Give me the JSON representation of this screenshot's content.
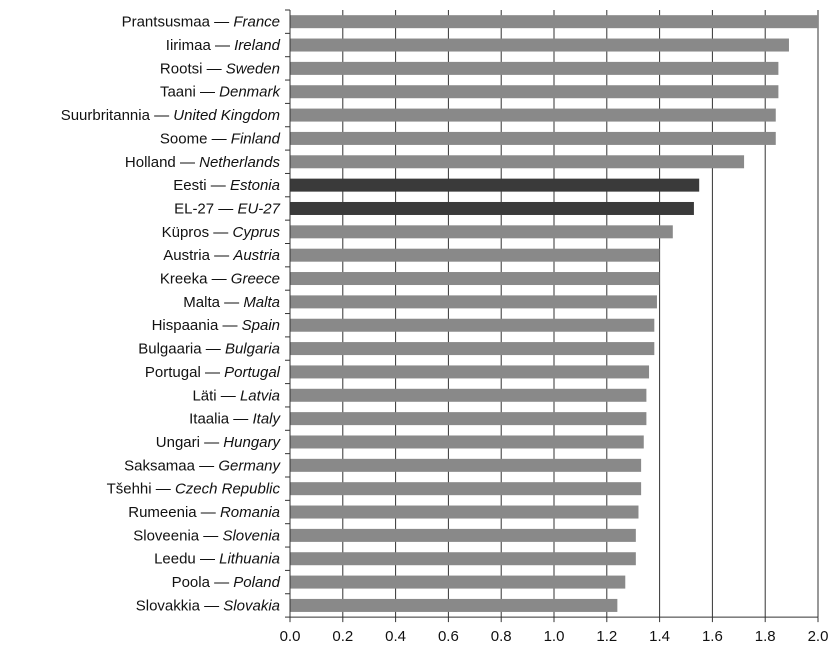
{
  "chart_data": {
    "type": "bar",
    "orientation": "horizontal",
    "title": "",
    "xlabel": "",
    "ylabel": "",
    "xlim": [
      0,
      2.0
    ],
    "xticks": [
      "0.0",
      "0.2",
      "0.4",
      "0.6",
      "0.8",
      "1.0",
      "1.2",
      "1.4",
      "1.6",
      "1.8",
      "2.0"
    ],
    "grid": "vertical",
    "legend": "none",
    "colors": {
      "bar": "#898989",
      "highlight": "#3a3a3a",
      "grid": "#333333",
      "axis": "#333333"
    },
    "categories": [
      {
        "et": "Prantsusmaa",
        "en": "France",
        "value": 2.0,
        "highlight": false
      },
      {
        "et": "Iirimaa",
        "en": "Ireland",
        "value": 1.89,
        "highlight": false
      },
      {
        "et": "Rootsi",
        "en": "Sweden",
        "value": 1.85,
        "highlight": false
      },
      {
        "et": "Taani",
        "en": "Denmark",
        "value": 1.85,
        "highlight": false
      },
      {
        "et": "Suurbritannia",
        "en": "United Kingdom",
        "value": 1.84,
        "highlight": false
      },
      {
        "et": "Soome",
        "en": "Finland",
        "value": 1.84,
        "highlight": false
      },
      {
        "et": "Holland",
        "en": "Netherlands",
        "value": 1.72,
        "highlight": false
      },
      {
        "et": "Eesti",
        "en": "Estonia",
        "value": 1.55,
        "highlight": true
      },
      {
        "et": "EL-27",
        "en": "EU-27",
        "value": 1.53,
        "highlight": true
      },
      {
        "et": "Küpros",
        "en": "Cyprus",
        "value": 1.45,
        "highlight": false
      },
      {
        "et": "Austria",
        "en": "Austria",
        "value": 1.4,
        "highlight": false
      },
      {
        "et": "Kreeka",
        "en": "Greece",
        "value": 1.4,
        "highlight": false
      },
      {
        "et": "Malta",
        "en": "Malta",
        "value": 1.39,
        "highlight": false
      },
      {
        "et": "Hispaania",
        "en": "Spain",
        "value": 1.38,
        "highlight": false
      },
      {
        "et": "Bulgaaria",
        "en": "Bulgaria",
        "value": 1.38,
        "highlight": false
      },
      {
        "et": "Portugal",
        "en": "Portugal",
        "value": 1.36,
        "highlight": false
      },
      {
        "et": "Läti",
        "en": "Latvia",
        "value": 1.35,
        "highlight": false
      },
      {
        "et": "Itaalia",
        "en": "Italy",
        "value": 1.35,
        "highlight": false
      },
      {
        "et": "Ungari",
        "en": "Hungary",
        "value": 1.34,
        "highlight": false
      },
      {
        "et": "Saksamaa",
        "en": "Germany",
        "value": 1.33,
        "highlight": false
      },
      {
        "et": "Tšehhi",
        "en": "Czech Republic",
        "value": 1.33,
        "highlight": false
      },
      {
        "et": "Rumeenia",
        "en": "Romania",
        "value": 1.32,
        "highlight": false
      },
      {
        "et": "Sloveenia",
        "en": "Slovenia",
        "value": 1.31,
        "highlight": false
      },
      {
        "et": "Leedu",
        "en": "Lithuania",
        "value": 1.31,
        "highlight": false
      },
      {
        "et": "Poola",
        "en": "Poland",
        "value": 1.27,
        "highlight": false
      },
      {
        "et": "Slovakkia",
        "en": "Slovakia",
        "value": 1.24,
        "highlight": false
      }
    ]
  }
}
